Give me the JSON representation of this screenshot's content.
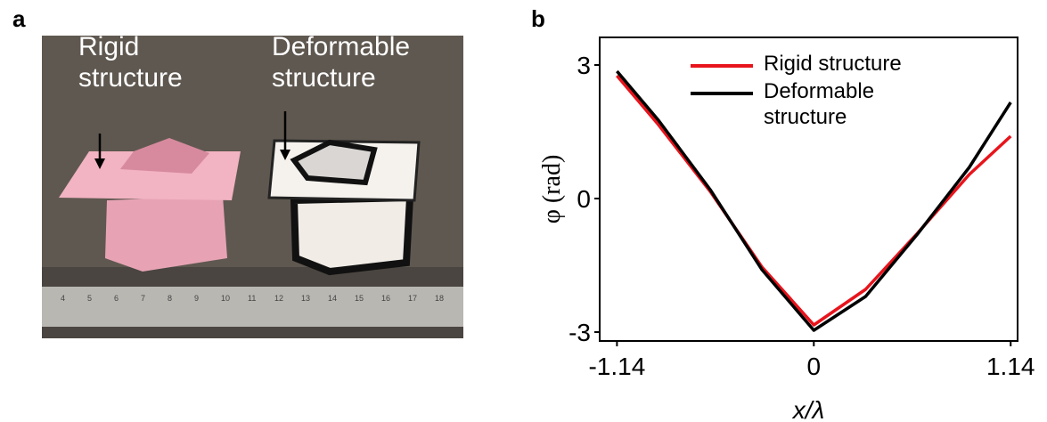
{
  "panel_a": {
    "label": "a",
    "annotations": [
      "Rigid structure",
      "Deformable structure"
    ],
    "ruler_labels": [
      "4",
      "5",
      "6",
      "7",
      "8",
      "9",
      "10",
      "11",
      "12",
      "13",
      "14",
      "15",
      "16",
      "17",
      "18"
    ]
  },
  "chart_data": {
    "type": "line",
    "panel_label": "b",
    "x_label": "x/λ",
    "y_label": "φ (rad)",
    "x": [
      -1.14,
      -0.9,
      -0.6,
      -0.3,
      0,
      0.3,
      0.6,
      0.9,
      1.14
    ],
    "series": [
      {
        "name": "Rigid structure",
        "color": "#e8141c",
        "values": [
          2.76,
          1.66,
          0.16,
          -1.54,
          -2.84,
          -2.04,
          -0.78,
          0.54,
          1.4
        ]
      },
      {
        "name": "Deformable structure",
        "color": "#000000",
        "values": [
          2.86,
          1.76,
          0.2,
          -1.6,
          -2.96,
          -2.2,
          -0.8,
          0.7,
          2.16
        ]
      }
    ],
    "xlim": [
      -1.24,
      1.18
    ],
    "ylim": [
      -3.2,
      3.62
    ],
    "xticks": [
      -1.14,
      0,
      1.14
    ],
    "yticks": [
      -3,
      0,
      3
    ],
    "grid": false,
    "legend": "upper center"
  }
}
